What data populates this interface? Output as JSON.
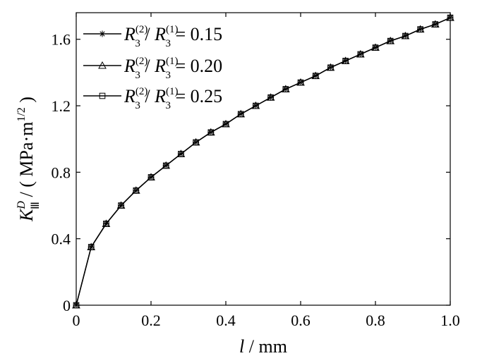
{
  "chart_data": {
    "type": "line",
    "x": [
      0,
      0.04,
      0.08,
      0.12,
      0.16,
      0.2,
      0.24,
      0.28,
      0.32,
      0.36,
      0.4,
      0.44,
      0.48,
      0.52,
      0.56,
      0.6,
      0.64,
      0.68,
      0.72,
      0.76,
      0.8,
      0.84,
      0.88,
      0.92,
      0.96,
      1.0
    ],
    "series": [
      {
        "name": "R3(2)/R3(1) = 0.15",
        "marker": "asterisk",
        "values": [
          0,
          0.35,
          0.49,
          0.6,
          0.69,
          0.77,
          0.84,
          0.91,
          0.98,
          1.04,
          1.09,
          1.15,
          1.2,
          1.25,
          1.3,
          1.34,
          1.38,
          1.43,
          1.47,
          1.51,
          1.55,
          1.59,
          1.62,
          1.66,
          1.69,
          1.73
        ]
      },
      {
        "name": "R3(2)/R3(1) = 0.20",
        "marker": "triangle",
        "values": [
          0,
          0.35,
          0.49,
          0.6,
          0.69,
          0.77,
          0.84,
          0.91,
          0.98,
          1.04,
          1.09,
          1.15,
          1.2,
          1.25,
          1.3,
          1.34,
          1.38,
          1.43,
          1.47,
          1.51,
          1.55,
          1.59,
          1.62,
          1.66,
          1.69,
          1.73
        ]
      },
      {
        "name": "R3(2)/R3(1) = 0.25",
        "marker": "square",
        "values": [
          0,
          0.35,
          0.49,
          0.6,
          0.69,
          0.77,
          0.84,
          0.91,
          0.98,
          1.04,
          1.09,
          1.15,
          1.2,
          1.25,
          1.3,
          1.34,
          1.38,
          1.43,
          1.47,
          1.51,
          1.55,
          1.59,
          1.62,
          1.66,
          1.69,
          1.73
        ]
      }
    ],
    "xlim": [
      0,
      1.0
    ],
    "ylim": [
      0,
      1.76
    ],
    "xticks": [
      "0",
      "0.2",
      "0.4",
      "0.6",
      "0.8",
      "1.0"
    ],
    "yticks": [
      "0",
      "0.4",
      "0.8",
      "1.2",
      "1.6"
    ],
    "xlabel": {
      "var": "l",
      "sep": " / ",
      "unit": "mm"
    },
    "ylabel": {
      "var": "K",
      "sup": "D",
      "sub": "Ⅲ",
      "sep": " / ( ",
      "unit": "MPa·m",
      "unit_sup": "1/2",
      "close": " )"
    },
    "legend": {
      "position": "top-left",
      "entries": [
        {
          "num": "R",
          "num_sub": "3",
          "num_sup": "(2)",
          "den": "R",
          "den_sub": "3",
          "den_sup": "(1)",
          "value": "= 0.15"
        },
        {
          "num": "R",
          "num_sub": "3",
          "num_sup": "(2)",
          "den": "R",
          "den_sub": "3",
          "den_sup": "(1)",
          "value": "= 0.20"
        },
        {
          "num": "R",
          "num_sub": "3",
          "num_sup": "(2)",
          "den": "R",
          "den_sub": "3",
          "den_sup": "(1)",
          "value": "= 0.25"
        }
      ]
    },
    "grid": false,
    "line_color": "#000000"
  }
}
